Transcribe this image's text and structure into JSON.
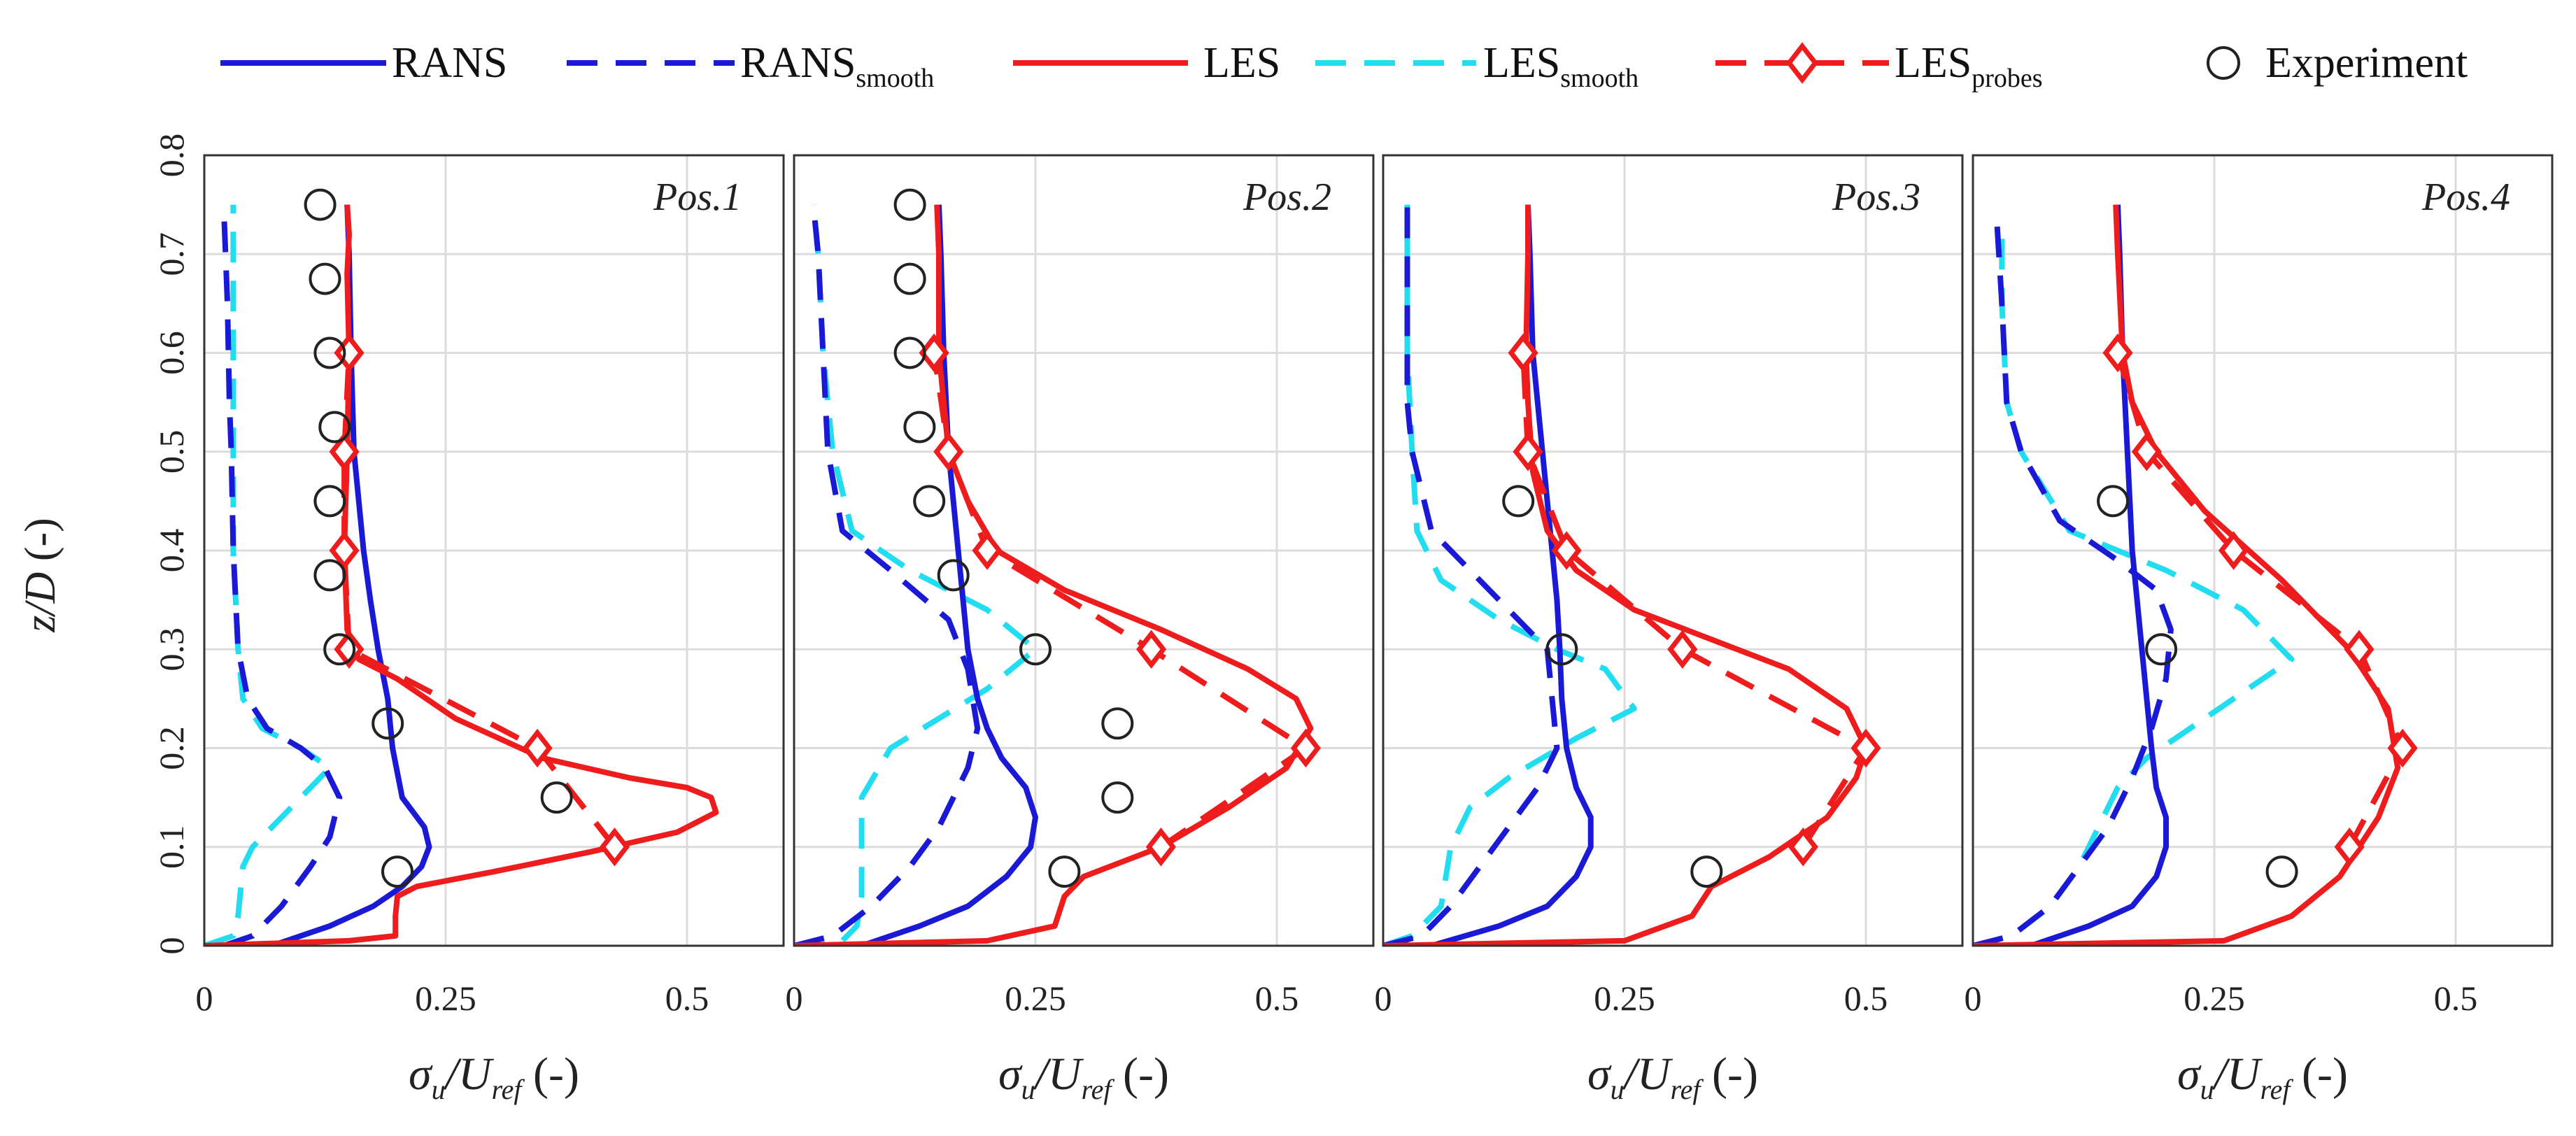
{
  "legend": {
    "entries": [
      {
        "key": "rans",
        "label": "RANS",
        "sub": "",
        "color": "#1a1ad6",
        "dash": "solid",
        "marker": "none"
      },
      {
        "key": "rans_smooth",
        "label": "RANS",
        "sub": "smooth",
        "color": "#1a1ad6",
        "dash": "dash",
        "marker": "none"
      },
      {
        "key": "les",
        "label": "LES",
        "sub": "",
        "color": "#ee1c1c",
        "dash": "solid",
        "marker": "none"
      },
      {
        "key": "les_smooth",
        "label": "LES",
        "sub": "smooth",
        "color": "#22dcf0",
        "dash": "dash",
        "marker": "none"
      },
      {
        "key": "les_probes",
        "label": "LES",
        "sub": "probes",
        "color": "#ee1c1c",
        "dash": "dash",
        "marker": "diamond"
      },
      {
        "key": "experiment",
        "label": "Experiment",
        "sub": "",
        "color": "#222222",
        "dash": "none",
        "marker": "circle"
      }
    ]
  },
  "axes": {
    "ylabel": {
      "pre": "z/D",
      "post": " (-)"
    },
    "xlabel": {
      "sigma": "σ",
      "sigma_sub": "u",
      "slash": "/U",
      "u_sub": "ref",
      "post": " (-)"
    },
    "xticks": [
      0,
      0.25,
      0.5
    ],
    "xtick_labels": [
      "0",
      "0.25",
      "0.5"
    ],
    "yticks": [
      0,
      0.1,
      0.2,
      0.3,
      0.4,
      0.5,
      0.6,
      0.7,
      0.8
    ],
    "ytick_labels": [
      "0",
      "0.1",
      "0.2",
      "0.3",
      "0.4",
      "0.5",
      "0.6",
      "0.7",
      "0.8"
    ],
    "xlim": [
      0,
      0.6
    ],
    "ylim": [
      0,
      0.8
    ],
    "grid": true
  },
  "chart_data": [
    {
      "type": "line",
      "title": "Pos.1",
      "xlabel": "σu/Uref (-)",
      "ylabel": "z/D (-)",
      "xlim": [
        0,
        0.6
      ],
      "ylim": [
        0,
        0.8
      ],
      "series": [
        {
          "name": "RANS",
          "x": [
            0.07,
            0.13,
            0.175,
            0.205,
            0.225,
            0.233,
            0.228,
            0.205,
            0.195,
            0.19,
            0.18,
            0.172,
            0.165,
            0.16,
            0.155,
            0.152,
            0.15,
            0.148
          ],
          "y": [
            0.0,
            0.02,
            0.04,
            0.06,
            0.08,
            0.1,
            0.12,
            0.15,
            0.2,
            0.25,
            0.3,
            0.35,
            0.4,
            0.45,
            0.5,
            0.6,
            0.7,
            0.75
          ]
        },
        {
          "name": "RANS smooth",
          "x": [
            0.02,
            0.05,
            0.08,
            0.11,
            0.13,
            0.14,
            0.125,
            0.1,
            0.065,
            0.045,
            0.035,
            0.03,
            0.028,
            0.026,
            0.025,
            0.024,
            0.022,
            0.02
          ],
          "y": [
            0.0,
            0.01,
            0.04,
            0.08,
            0.11,
            0.15,
            0.18,
            0.2,
            0.22,
            0.25,
            0.3,
            0.4,
            0.5,
            0.55,
            0.6,
            0.65,
            0.7,
            0.75
          ]
        },
        {
          "name": "LES",
          "x": [
            0.0,
            0.15,
            0.198,
            0.198,
            0.2,
            0.22,
            0.3,
            0.4,
            0.49,
            0.53,
            0.525,
            0.5,
            0.44,
            0.35,
            0.26,
            0.2,
            0.16,
            0.148,
            0.145,
            0.148,
            0.15,
            0.148,
            0.15,
            0.148
          ],
          "y": [
            0.0,
            0.005,
            0.01,
            0.03,
            0.05,
            0.06,
            0.075,
            0.095,
            0.115,
            0.135,
            0.15,
            0.16,
            0.17,
            0.19,
            0.23,
            0.27,
            0.29,
            0.32,
            0.4,
            0.5,
            0.6,
            0.68,
            0.72,
            0.75
          ]
        },
        {
          "name": "LES smooth",
          "x": [
            0.0,
            0.03,
            0.035,
            0.04,
            0.05,
            0.08,
            0.11,
            0.13,
            0.1,
            0.06,
            0.04,
            0.035,
            0.03,
            0.03,
            0.03,
            0.03
          ],
          "y": [
            0.0,
            0.01,
            0.03,
            0.08,
            0.1,
            0.13,
            0.16,
            0.18,
            0.2,
            0.22,
            0.25,
            0.3,
            0.4,
            0.5,
            0.6,
            0.75
          ]
        },
        {
          "name": "LES probes",
          "x": [
            0.425,
            0.345,
            0.15,
            0.145,
            0.145,
            0.15
          ],
          "y": [
            0.1,
            0.2,
            0.3,
            0.4,
            0.5,
            0.6
          ]
        },
        {
          "name": "Experiment",
          "x": [
            0.2,
            0.365,
            0.19,
            0.14,
            0.13,
            0.13,
            0.135,
            0.13,
            0.125,
            0.12
          ],
          "y": [
            0.075,
            0.15,
            0.225,
            0.3,
            0.375,
            0.45,
            0.525,
            0.6,
            0.675,
            0.75
          ]
        }
      ]
    },
    {
      "type": "line",
      "title": "Pos.2",
      "xlabel": "σu/Uref (-)",
      "ylabel": "z/D (-)",
      "xlim": [
        0,
        0.6
      ],
      "ylim": [
        0,
        0.8
      ],
      "series": [
        {
          "name": "RANS",
          "x": [
            0.07,
            0.13,
            0.18,
            0.22,
            0.245,
            0.25,
            0.24,
            0.215,
            0.2,
            0.19,
            0.18,
            0.175,
            0.17,
            0.165,
            0.16,
            0.155,
            0.152,
            0.15
          ],
          "y": [
            0.0,
            0.02,
            0.04,
            0.07,
            0.1,
            0.13,
            0.16,
            0.19,
            0.22,
            0.25,
            0.3,
            0.35,
            0.4,
            0.45,
            0.5,
            0.6,
            0.7,
            0.75
          ]
        },
        {
          "name": "RANS smooth",
          "x": [
            0.0,
            0.04,
            0.08,
            0.12,
            0.15,
            0.18,
            0.19,
            0.18,
            0.16,
            0.1,
            0.05,
            0.035,
            0.03,
            0.025,
            0.02
          ],
          "y": [
            0.0,
            0.01,
            0.04,
            0.08,
            0.12,
            0.18,
            0.22,
            0.28,
            0.33,
            0.38,
            0.42,
            0.5,
            0.6,
            0.7,
            0.75
          ]
        },
        {
          "name": "LES",
          "x": [
            0.0,
            0.2,
            0.27,
            0.28,
            0.3,
            0.38,
            0.45,
            0.51,
            0.535,
            0.52,
            0.47,
            0.38,
            0.28,
            0.21,
            0.18,
            0.16,
            0.15,
            0.15,
            0.148
          ],
          "y": [
            0.0,
            0.005,
            0.02,
            0.05,
            0.07,
            0.1,
            0.14,
            0.18,
            0.22,
            0.25,
            0.28,
            0.32,
            0.36,
            0.4,
            0.45,
            0.5,
            0.6,
            0.7,
            0.75
          ]
        },
        {
          "name": "LES smooth",
          "x": [
            0.0,
            0.05,
            0.065,
            0.07,
            0.07,
            0.1,
            0.15,
            0.2,
            0.25,
            0.2,
            0.12,
            0.06,
            0.04,
            0.03,
            0.025,
            0.02
          ],
          "y": [
            0.0,
            0.005,
            0.02,
            0.05,
            0.15,
            0.2,
            0.23,
            0.26,
            0.3,
            0.34,
            0.38,
            0.42,
            0.5,
            0.6,
            0.7,
            0.75
          ]
        },
        {
          "name": "LES probes",
          "x": [
            0.38,
            0.53,
            0.37,
            0.2,
            0.16,
            0.145
          ],
          "y": [
            0.1,
            0.2,
            0.3,
            0.4,
            0.5,
            0.6
          ]
        },
        {
          "name": "Experiment",
          "x": [
            0.28,
            0.335,
            0.335,
            0.25,
            0.165,
            0.14,
            0.13,
            0.12,
            0.12,
            0.12
          ],
          "y": [
            0.075,
            0.15,
            0.225,
            0.3,
            0.375,
            0.45,
            0.525,
            0.6,
            0.675,
            0.75
          ]
        }
      ]
    },
    {
      "type": "line",
      "title": "Pos.3",
      "xlabel": "σu/Uref (-)",
      "ylabel": "z/D (-)",
      "xlim": [
        0,
        0.6
      ],
      "ylim": [
        0,
        0.8
      ],
      "series": [
        {
          "name": "RANS",
          "x": [
            0.05,
            0.12,
            0.17,
            0.2,
            0.215,
            0.215,
            0.2,
            0.19,
            0.185,
            0.183,
            0.18,
            0.175,
            0.17,
            0.165,
            0.16,
            0.155,
            0.152,
            0.15
          ],
          "y": [
            0.0,
            0.02,
            0.04,
            0.07,
            0.1,
            0.13,
            0.16,
            0.2,
            0.25,
            0.3,
            0.35,
            0.4,
            0.45,
            0.5,
            0.55,
            0.6,
            0.7,
            0.75
          ]
        },
        {
          "name": "RANS smooth",
          "x": [
            0.0,
            0.04,
            0.07,
            0.1,
            0.13,
            0.16,
            0.18,
            0.17,
            0.1,
            0.05,
            0.03,
            0.025,
            0.025,
            0.025,
            0.025
          ],
          "y": [
            0.0,
            0.01,
            0.04,
            0.08,
            0.12,
            0.16,
            0.2,
            0.3,
            0.37,
            0.42,
            0.5,
            0.55,
            0.6,
            0.7,
            0.75
          ]
        },
        {
          "name": "LES",
          "x": [
            0.0,
            0.25,
            0.32,
            0.34,
            0.4,
            0.46,
            0.49,
            0.5,
            0.48,
            0.42,
            0.34,
            0.26,
            0.2,
            0.17,
            0.155,
            0.15,
            0.148,
            0.15,
            0.15
          ],
          "y": [
            0.0,
            0.005,
            0.03,
            0.06,
            0.09,
            0.13,
            0.17,
            0.2,
            0.24,
            0.28,
            0.31,
            0.34,
            0.38,
            0.42,
            0.48,
            0.55,
            0.6,
            0.7,
            0.75
          ]
        },
        {
          "name": "LES smooth",
          "x": [
            0.0,
            0.03,
            0.06,
            0.07,
            0.09,
            0.13,
            0.2,
            0.26,
            0.23,
            0.18,
            0.12,
            0.06,
            0.035,
            0.03,
            0.025,
            0.025
          ],
          "y": [
            0.0,
            0.01,
            0.04,
            0.1,
            0.14,
            0.17,
            0.21,
            0.24,
            0.28,
            0.3,
            0.33,
            0.37,
            0.42,
            0.5,
            0.6,
            0.75
          ]
        },
        {
          "name": "LES probes",
          "x": [
            0.435,
            0.5,
            0.31,
            0.19,
            0.15,
            0.145
          ],
          "y": [
            0.1,
            0.2,
            0.3,
            0.4,
            0.5,
            0.6
          ]
        },
        {
          "name": "Experiment",
          "x": [
            0.335,
            0.185,
            0.14
          ],
          "y": [
            0.075,
            0.3,
            0.45
          ]
        }
      ]
    },
    {
      "type": "line",
      "title": "Pos.4",
      "xlabel": "σu/Uref (-)",
      "ylabel": "z/D (-)",
      "xlim": [
        0,
        0.6
      ],
      "ylim": [
        0,
        0.8
      ],
      "series": [
        {
          "name": "RANS",
          "x": [
            0.06,
            0.12,
            0.165,
            0.19,
            0.2,
            0.2,
            0.19,
            0.185,
            0.18,
            0.175,
            0.17,
            0.165,
            0.16,
            0.155,
            0.152,
            0.15
          ],
          "y": [
            0.0,
            0.02,
            0.04,
            0.07,
            0.1,
            0.13,
            0.16,
            0.2,
            0.25,
            0.3,
            0.35,
            0.4,
            0.5,
            0.6,
            0.7,
            0.75
          ]
        },
        {
          "name": "RANS smooth",
          "x": [
            0.0,
            0.04,
            0.08,
            0.11,
            0.14,
            0.165,
            0.185,
            0.2,
            0.205,
            0.19,
            0.15,
            0.09,
            0.05,
            0.035,
            0.03,
            0.025
          ],
          "y": [
            0.0,
            0.01,
            0.04,
            0.08,
            0.12,
            0.17,
            0.22,
            0.27,
            0.32,
            0.36,
            0.39,
            0.43,
            0.5,
            0.55,
            0.65,
            0.73
          ]
        },
        {
          "name": "LES",
          "x": [
            0.0,
            0.26,
            0.33,
            0.38,
            0.42,
            0.44,
            0.43,
            0.39,
            0.32,
            0.24,
            0.19,
            0.165,
            0.155,
            0.15,
            0.148
          ],
          "y": [
            0.0,
            0.005,
            0.03,
            0.07,
            0.13,
            0.18,
            0.24,
            0.3,
            0.37,
            0.44,
            0.5,
            0.55,
            0.6,
            0.7,
            0.75
          ]
        },
        {
          "name": "LES smooth",
          "x": [
            0.0,
            0.04,
            0.08,
            0.11,
            0.13,
            0.15,
            0.18,
            0.24,
            0.33,
            0.28,
            0.2,
            0.1,
            0.05,
            0.035,
            0.03,
            0.03
          ],
          "y": [
            0.0,
            0.01,
            0.04,
            0.08,
            0.12,
            0.16,
            0.19,
            0.23,
            0.29,
            0.34,
            0.38,
            0.42,
            0.5,
            0.55,
            0.65,
            0.73
          ]
        },
        {
          "name": "LES probes",
          "x": [
            0.39,
            0.445,
            0.4,
            0.27,
            0.18,
            0.15
          ],
          "y": [
            0.1,
            0.2,
            0.3,
            0.4,
            0.5,
            0.6
          ]
        },
        {
          "name": "Experiment",
          "x": [
            0.32,
            0.195,
            0.145
          ],
          "y": [
            0.075,
            0.3,
            0.45
          ]
        }
      ]
    }
  ]
}
